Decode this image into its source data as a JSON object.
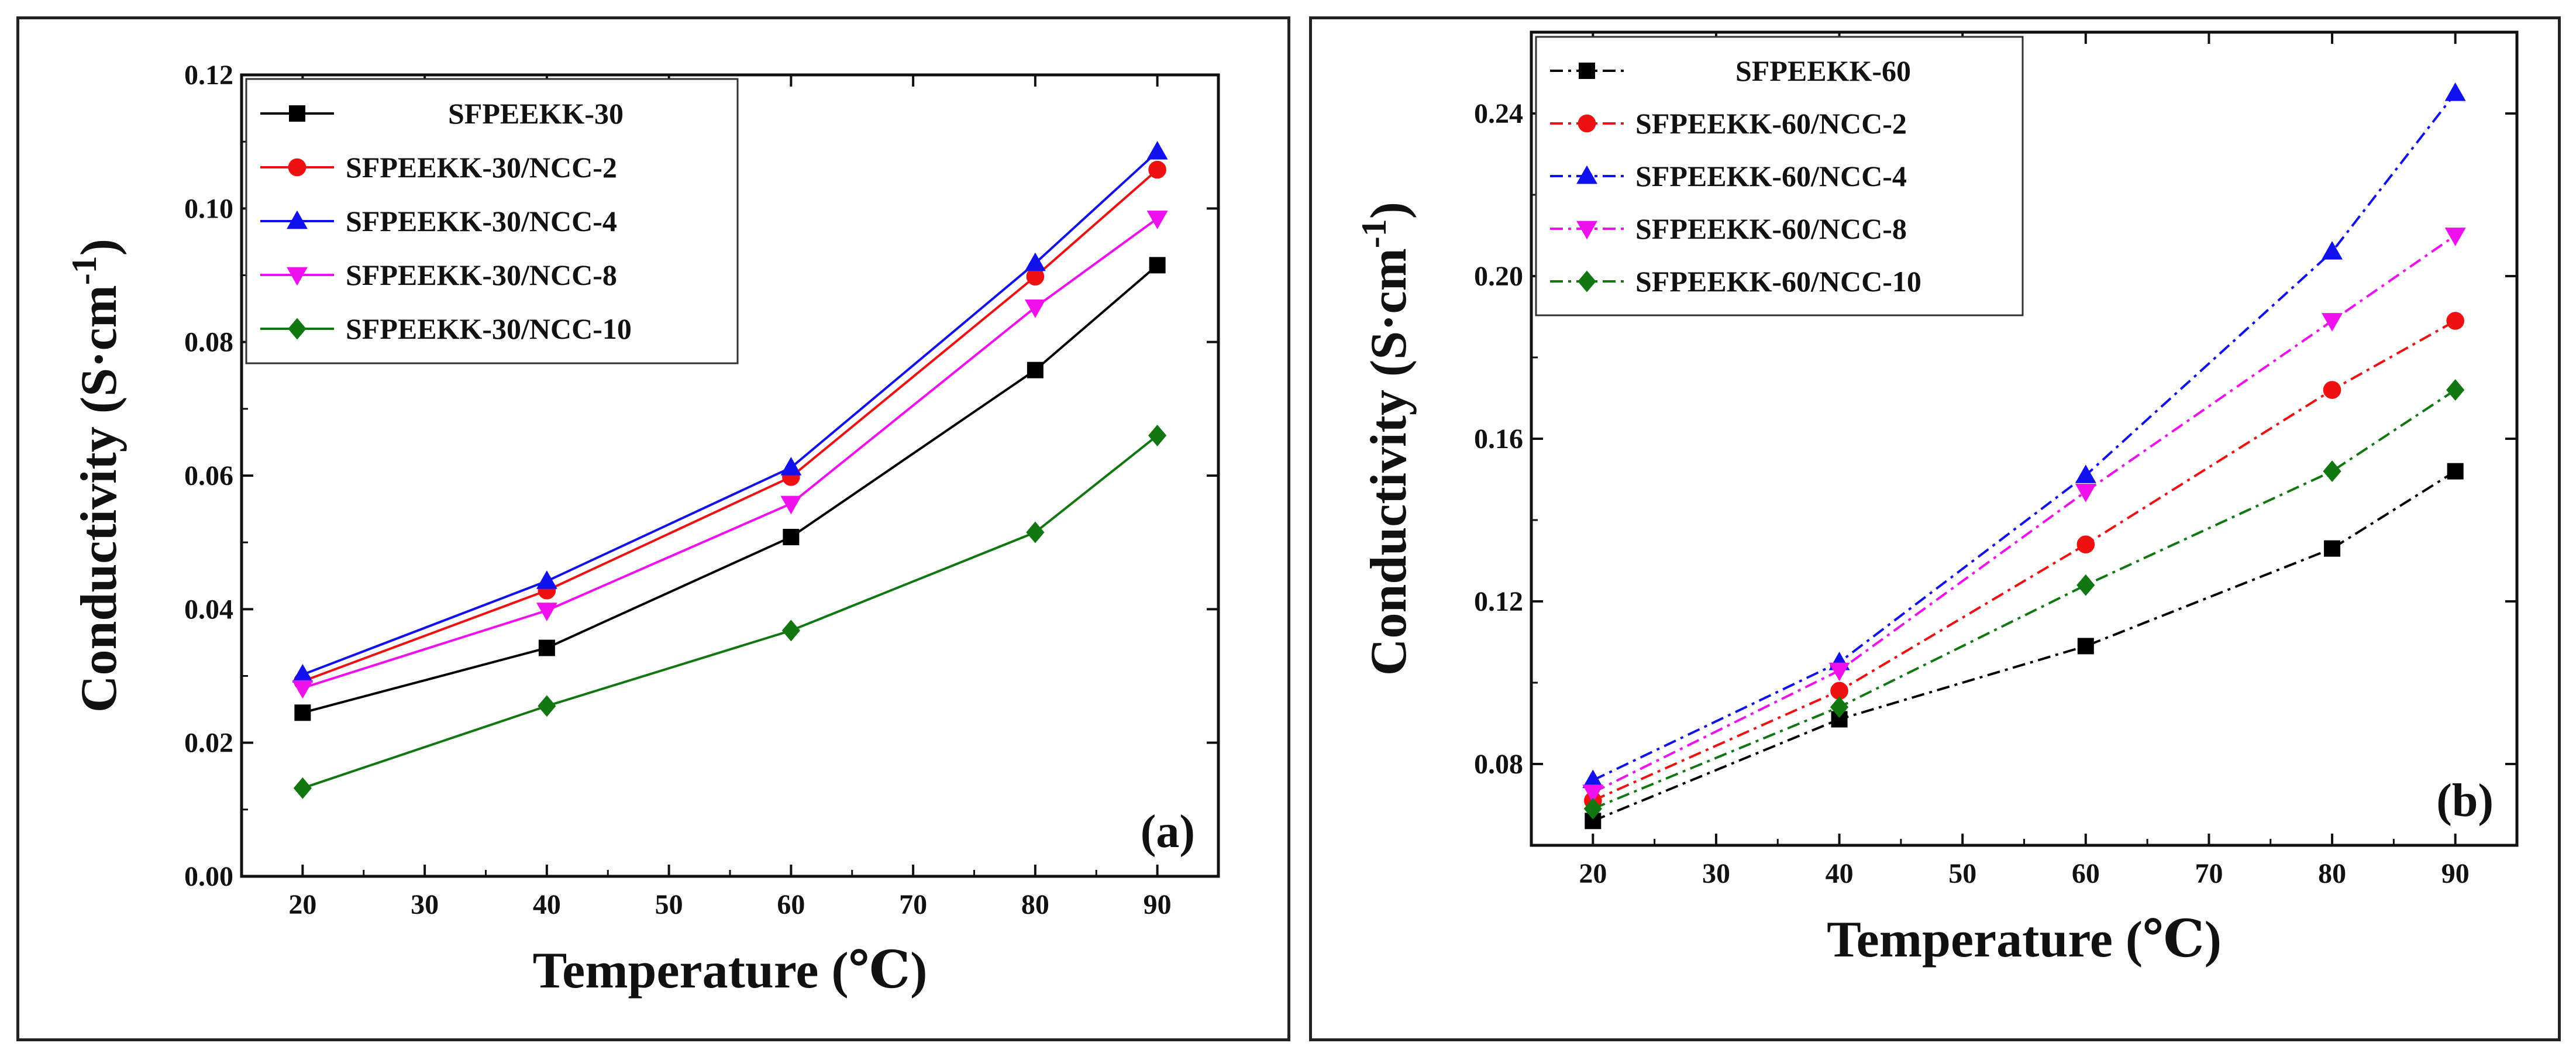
{
  "chart_data": [
    {
      "type": "line",
      "panel_label": "(a)",
      "title": "",
      "xlabel": "Temperature (℃)",
      "ylabel": "Conductivity (S·cm",
      "ylabel_sup": "-1",
      "ylabel_close": ")",
      "xlim": [
        15,
        95
      ],
      "ylim": [
        0.0,
        0.12
      ],
      "xticks": [
        20,
        30,
        40,
        50,
        60,
        70,
        80,
        90
      ],
      "yticks": [
        0.0,
        0.02,
        0.04,
        0.06,
        0.08,
        0.1,
        0.12
      ],
      "ytick_labels": [
        "0.00",
        "0.02",
        "0.04",
        "0.06",
        "0.08",
        "0.10",
        "0.12"
      ],
      "x": [
        20,
        40,
        60,
        80,
        90
      ],
      "legend_position": "top-left",
      "line_style": "solid",
      "series": [
        {
          "name": "SFPEEKK-30",
          "color": "#000000",
          "marker": "square",
          "values": [
            0.0245,
            0.0342,
            0.0508,
            0.0758,
            0.0915
          ]
        },
        {
          "name": "SFPEEKK-30/NCC-2",
          "color": "#ee1111",
          "marker": "circle",
          "values": [
            0.0292,
            0.0428,
            0.0598,
            0.0898,
            0.1058
          ]
        },
        {
          "name": "SFPEEKK-30/NCC-4",
          "color": "#1111ee",
          "marker": "triangle-up",
          "values": [
            0.0302,
            0.0442,
            0.0612,
            0.0918,
            0.1085
          ]
        },
        {
          "name": "SFPEEKK-30/NCC-8",
          "color": "#ee11ee",
          "marker": "triangle-down",
          "values": [
            0.0282,
            0.0398,
            0.0558,
            0.0852,
            0.0985
          ]
        },
        {
          "name": "SFPEEKK-30/NCC-10",
          "color": "#117711",
          "marker": "diamond",
          "values": [
            0.0132,
            0.0255,
            0.0368,
            0.0515,
            0.066
          ]
        }
      ]
    },
    {
      "type": "line",
      "panel_label": "(b)",
      "title": "",
      "xlabel": "Temperature (℃)",
      "ylabel": "Conductivity (S·cm",
      "ylabel_sup": "-1",
      "ylabel_close": ")",
      "xlim": [
        15,
        95
      ],
      "ylim": [
        0.06,
        0.26
      ],
      "xticks": [
        20,
        30,
        40,
        50,
        60,
        70,
        80,
        90
      ],
      "yticks": [
        0.08,
        0.12,
        0.16,
        0.2,
        0.24
      ],
      "ytick_labels": [
        "0.08",
        "0.12",
        "0.16",
        "0.20",
        "0.24"
      ],
      "x": [
        20,
        40,
        60,
        80,
        90
      ],
      "legend_position": "top-left",
      "line_style": "dash-dot",
      "series": [
        {
          "name": "SFPEEKK-60",
          "color": "#000000",
          "marker": "square",
          "values": [
            0.066,
            0.091,
            0.109,
            0.133,
            0.152
          ]
        },
        {
          "name": "SFPEEKK-60/NCC-2",
          "color": "#ee1111",
          "marker": "circle",
          "values": [
            0.071,
            0.098,
            0.134,
            0.172,
            0.189
          ]
        },
        {
          "name": "SFPEEKK-60/NCC-4",
          "color": "#1111ee",
          "marker": "triangle-up",
          "values": [
            0.076,
            0.105,
            0.151,
            0.206,
            0.245
          ]
        },
        {
          "name": "SFPEEKK-60/NCC-8",
          "color": "#ee11ee",
          "marker": "triangle-down",
          "values": [
            0.073,
            0.103,
            0.147,
            0.189,
            0.21
          ]
        },
        {
          "name": "SFPEEKK-60/NCC-10",
          "color": "#117711",
          "marker": "diamond",
          "values": [
            0.069,
            0.094,
            0.124,
            0.152,
            0.172
          ]
        }
      ]
    }
  ]
}
